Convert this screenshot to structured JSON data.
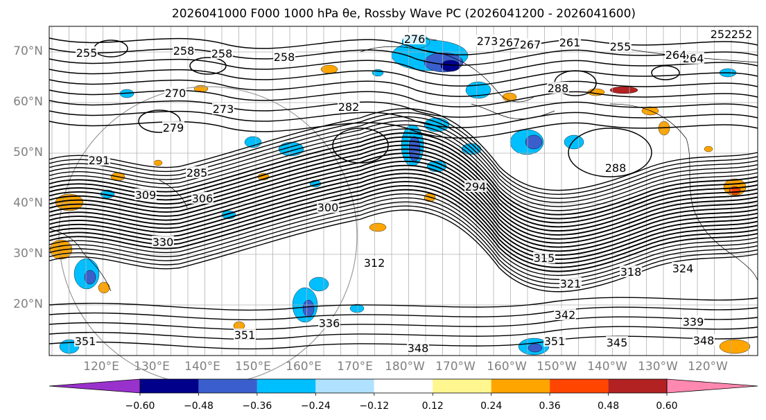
{
  "map": {
    "title": "2026041000 F000 1000 hPa θe, Rossby Wave PC (2026041200 - 2026041600)",
    "lat_labels": [
      "70°N",
      "60°N",
      "50°N",
      "40°N",
      "30°N",
      "20°N"
    ],
    "lon_labels": [
      "120°E",
      "130°E",
      "140°E",
      "150°E",
      "160°E",
      "170°E",
      "180°W",
      "170°W",
      "160°W",
      "150°W",
      "140°W",
      "130°W",
      "120°W"
    ],
    "contour_labels": [
      "252",
      "255",
      "258",
      "258",
      "264",
      "267",
      "270",
      "273",
      "276",
      "279",
      "282",
      "285",
      "288",
      "288",
      "291",
      "294",
      "300",
      "306",
      "309",
      "312",
      "315",
      "318",
      "321",
      "324",
      "330",
      "336",
      "339",
      "342",
      "345",
      "348",
      "348",
      "351",
      "351",
      "351",
      "258",
      "261",
      "264",
      "267",
      "252",
      "255",
      "273"
    ],
    "colorbar": {
      "ticks": [
        "−0.60",
        "−0.48",
        "−0.36",
        "−0.24",
        "−0.12",
        "0.12",
        "0.24",
        "0.36",
        "0.48",
        "0.60"
      ],
      "colors": [
        "#9932cc",
        "#00008b",
        "#3a5fcd",
        "#00bfff",
        "#b0e2ff",
        "#ffffff",
        "#fff68f",
        "#ffa500",
        "#ff4500",
        "#b22222",
        "#ff88b0"
      ]
    }
  }
}
